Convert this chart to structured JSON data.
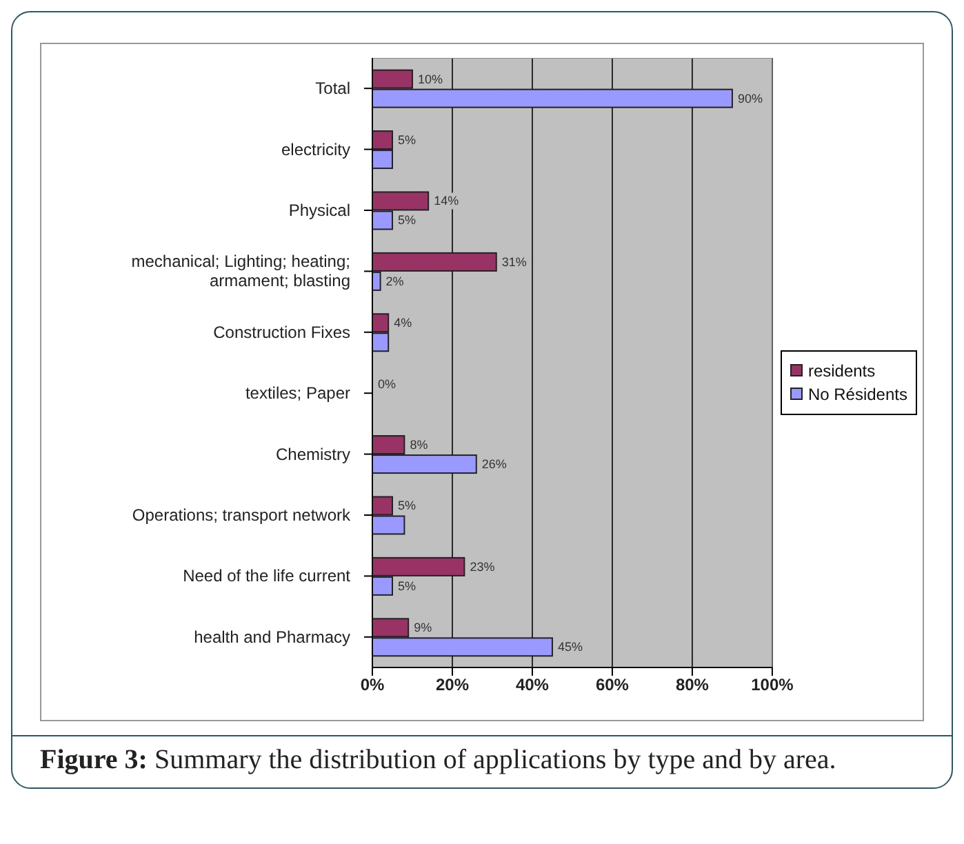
{
  "chart_data": {
    "type": "bar",
    "orientation": "horizontal",
    "categories": [
      "Total",
      "electricity",
      "Physical",
      "mechanical; Lighting; heating; armament; blasting",
      "Construction Fixes",
      "textiles; Paper",
      "Chemistry",
      "Operations; transport network",
      "Need of the life current",
      "health and Pharmacy"
    ],
    "series": [
      {
        "name": "residents",
        "color": "#993366",
        "values": [
          10,
          5,
          14,
          31,
          4,
          0,
          8,
          5,
          23,
          9
        ],
        "value_labels": [
          "10%",
          "5%",
          "14%",
          "31%",
          "4%",
          "0%",
          "8%",
          "5%",
          "23%",
          "9%"
        ]
      },
      {
        "name": "No Résidents",
        "color": "#9999ff",
        "values": [
          90,
          5,
          5,
          2,
          4,
          0,
          26,
          8,
          5,
          45
        ],
        "value_labels": [
          "90%",
          null,
          "5%",
          "2%",
          null,
          null,
          "26%",
          null,
          "5%",
          "45%"
        ]
      }
    ],
    "xlim": [
      0,
      100
    ],
    "xticks": [
      {
        "value": 0,
        "label": "0%"
      },
      {
        "value": 20,
        "label": "20%"
      },
      {
        "value": 40,
        "label": "40%"
      },
      {
        "value": 60,
        "label": "60%"
      },
      {
        "value": 80,
        "label": "80%"
      },
      {
        "value": 100,
        "label": "100%"
      }
    ],
    "grid": "x",
    "legend": "right",
    "annotations": [
      "Figure 3: Summary the distribution of applications by type and by area."
    ]
  }
}
